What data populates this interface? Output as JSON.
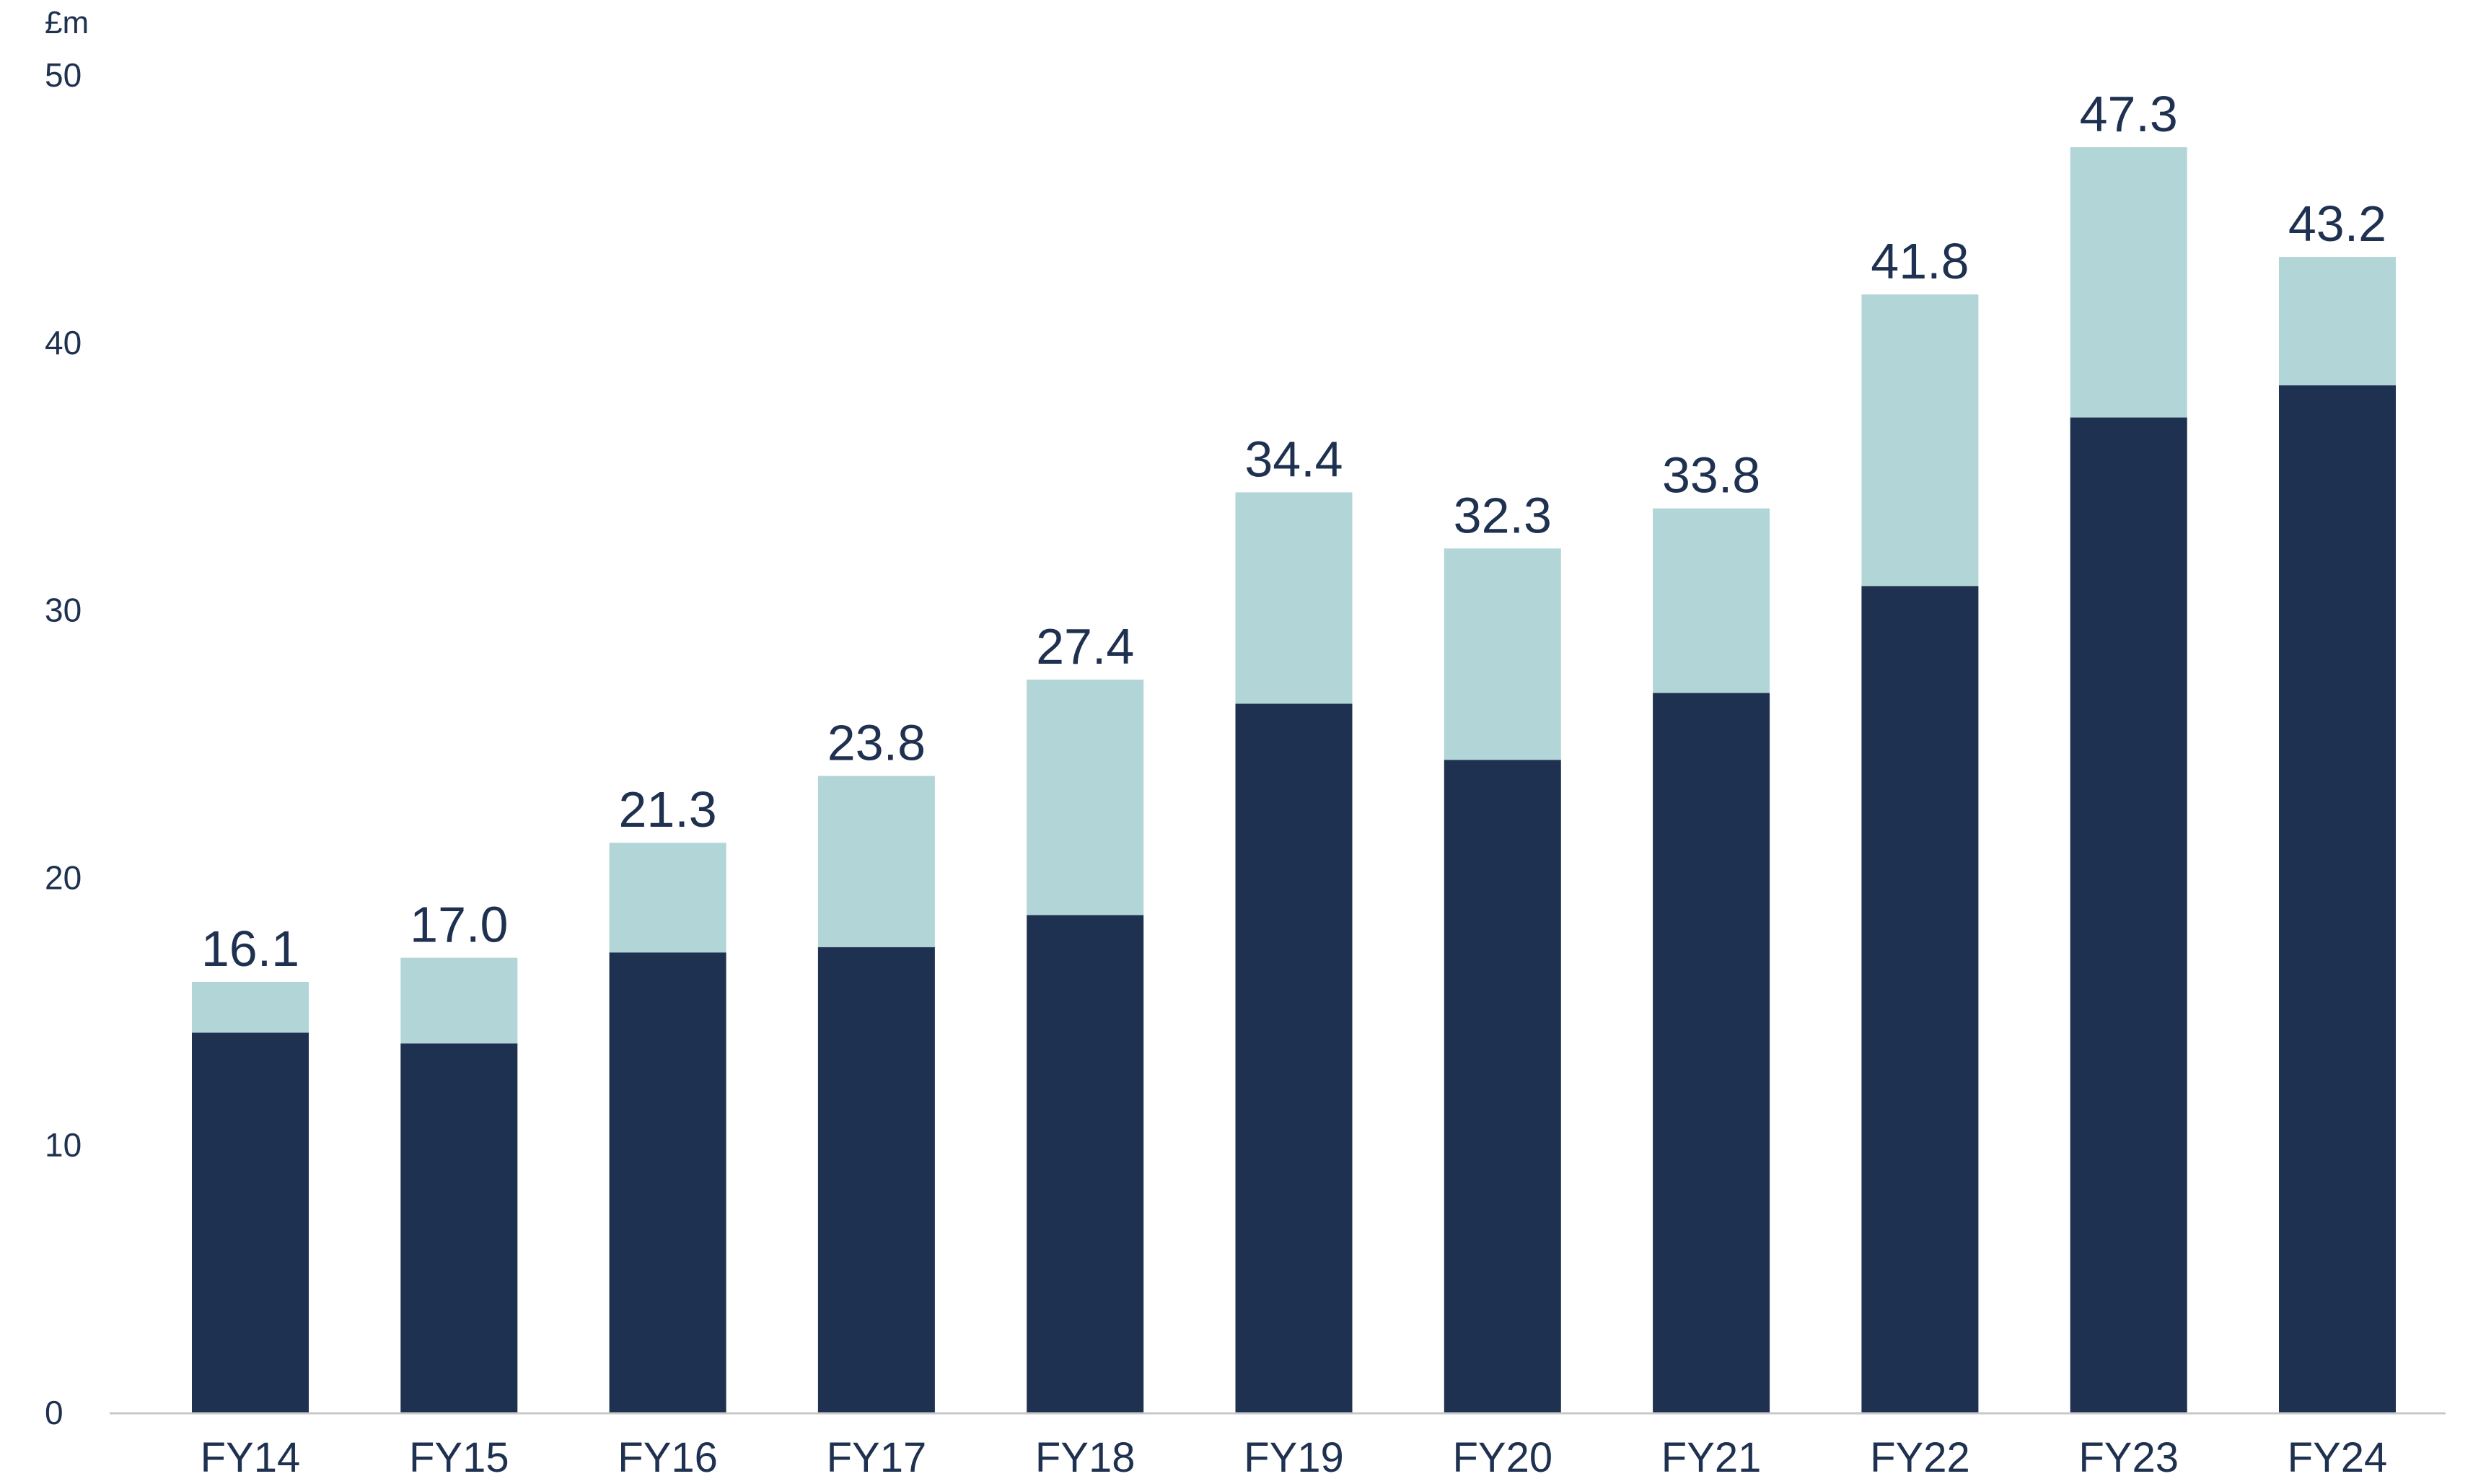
{
  "chart_data": {
    "type": "bar",
    "stacked": true,
    "unit_label": "£m",
    "categories": [
      "FY14",
      "FY15",
      "FY16",
      "FY17",
      "FY18",
      "FY19",
      "FY20",
      "FY21",
      "FY22",
      "FY23",
      "FY24"
    ],
    "series": [
      {
        "color": "#1f3150",
        "values": [
          14.2,
          13.8,
          17.2,
          17.4,
          18.6,
          26.5,
          24.4,
          26.9,
          30.9,
          37.2,
          38.4
        ]
      },
      {
        "color": "#b2d5d7",
        "values": [
          1.9,
          3.2,
          4.1,
          6.4,
          8.8,
          7.9,
          7.9,
          6.9,
          10.9,
          10.1,
          4.8
        ]
      }
    ],
    "totals": [
      "16.1",
      "17.0",
      "21.3",
      "23.8",
      "27.4",
      "34.4",
      "32.3",
      "33.8",
      "41.8",
      "47.3",
      "43.2"
    ],
    "y_ticks": [
      "0",
      "10",
      "20",
      "30",
      "40",
      "50"
    ],
    "ylim": [
      0,
      50
    ],
    "grid": false,
    "legend": "none"
  }
}
